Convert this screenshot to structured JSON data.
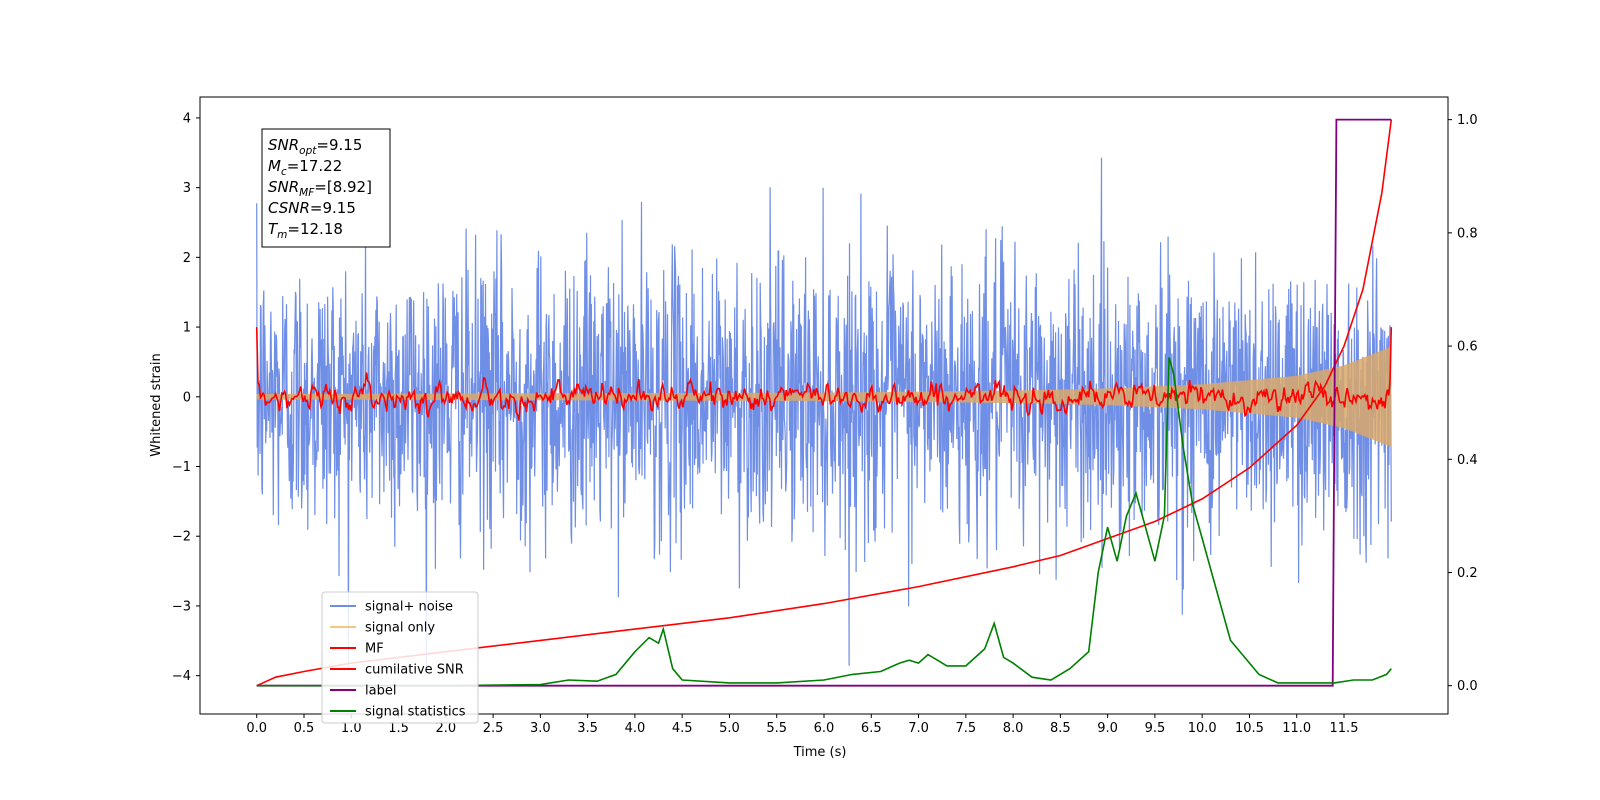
{
  "chart_data": {
    "type": "line",
    "xlabel": "Time (s)",
    "ylabel": "Whitened strain",
    "xlim": [
      -0.6,
      12.6
    ],
    "ylim": [
      -4.55,
      4.3
    ],
    "y2lim": [
      -0.05,
      1.04
    ],
    "xticks": [
      "0.0",
      "0.5",
      "1.0",
      "1.5",
      "2.0",
      "2.5",
      "3.0",
      "3.5",
      "4.0",
      "4.5",
      "5.0",
      "5.5",
      "6.0",
      "6.5",
      "7.0",
      "7.5",
      "8.0",
      "8.5",
      "9.0",
      "9.5",
      "10.0",
      "10.5",
      "11.0",
      "11.5"
    ],
    "yticks": [
      "4",
      "3",
      "2",
      "1",
      "0",
      "−1",
      "−2",
      "−3",
      "−4"
    ],
    "y2ticks": [
      "1.0",
      "0.8",
      "0.6",
      "0.4",
      "0.2",
      "0.0"
    ],
    "grid": false,
    "legend_position": "lower-left",
    "series": [
      {
        "name": "signal+ noise",
        "color": "#6f8ee6",
        "axis": "left",
        "description_values": {
          "t_start": 0.0,
          "t_end": 12.0,
          "sigma": 1.0
        }
      },
      {
        "name": "signal only",
        "color": "#f5c77e",
        "axis": "left",
        "envelope": {
          "t": [
            0,
            6,
            8,
            9,
            10,
            11,
            11.5,
            12
          ],
          "amp": [
            0.04,
            0.06,
            0.09,
            0.12,
            0.18,
            0.3,
            0.45,
            0.72
          ]
        }
      },
      {
        "name": "MF",
        "color": "#ff0000",
        "axis": "left",
        "values_summary": {
          "start": 1.0,
          "baseline": 0.0,
          "end": 1.0
        }
      },
      {
        "name": "cumilative SNR",
        "color": "#ff0000",
        "axis": "right",
        "x": [
          0.0,
          0.2,
          0.5,
          1.0,
          2.0,
          3.0,
          4.0,
          5.0,
          6.0,
          7.0,
          8.0,
          8.5,
          9.0,
          9.5,
          10.0,
          10.5,
          11.0,
          11.3,
          11.5,
          11.7,
          11.9,
          12.0
        ],
        "y": [
          0.0,
          0.015,
          0.025,
          0.04,
          0.06,
          0.08,
          0.1,
          0.12,
          0.145,
          0.175,
          0.21,
          0.23,
          0.26,
          0.29,
          0.33,
          0.385,
          0.46,
          0.53,
          0.6,
          0.7,
          0.87,
          1.0
        ]
      },
      {
        "name": "label",
        "color": "#800080",
        "axis": "right",
        "x": [
          0.0,
          11.38,
          11.4,
          11.42,
          12.0
        ],
        "y": [
          0.0,
          0.0,
          0.5,
          1.0,
          1.0
        ]
      },
      {
        "name": "signal statistics",
        "color": "#008000",
        "axis": "right",
        "x": [
          0.0,
          1.0,
          2.0,
          3.0,
          3.3,
          3.6,
          3.8,
          4.0,
          4.15,
          4.25,
          4.3,
          4.4,
          4.5,
          5.0,
          5.5,
          6.0,
          6.3,
          6.6,
          6.8,
          6.9,
          7.0,
          7.1,
          7.2,
          7.3,
          7.5,
          7.7,
          7.8,
          7.9,
          8.0,
          8.2,
          8.4,
          8.6,
          8.8,
          8.9,
          9.0,
          9.1,
          9.2,
          9.3,
          9.4,
          9.5,
          9.6,
          9.65,
          9.7,
          9.8,
          9.9,
          10.0,
          10.1,
          10.3,
          10.6,
          10.8,
          11.0,
          11.4,
          11.6,
          11.8,
          11.95,
          12.0
        ],
        "y": [
          0.0,
          0.0,
          0.0,
          0.002,
          0.01,
          0.008,
          0.02,
          0.06,
          0.085,
          0.075,
          0.1,
          0.03,
          0.01,
          0.005,
          0.005,
          0.01,
          0.02,
          0.025,
          0.04,
          0.045,
          0.04,
          0.055,
          0.045,
          0.035,
          0.035,
          0.065,
          0.11,
          0.05,
          0.04,
          0.015,
          0.01,
          0.03,
          0.06,
          0.2,
          0.28,
          0.22,
          0.3,
          0.34,
          0.28,
          0.22,
          0.3,
          0.58,
          0.55,
          0.42,
          0.32,
          0.26,
          0.2,
          0.08,
          0.02,
          0.005,
          0.005,
          0.005,
          0.01,
          0.01,
          0.02,
          0.03
        ]
      }
    ],
    "annotation": {
      "lines": [
        {
          "var": "SNR",
          "sub": "opt",
          "value": "=9.15"
        },
        {
          "var": "M",
          "sub": "c",
          "value": "=17.22"
        },
        {
          "var": "SNR",
          "sub": "MF",
          "value": "=[8.92]"
        },
        {
          "var": "CSNR",
          "sub": "",
          "value": "=9.15"
        },
        {
          "var": "T",
          "sub": "m",
          "value": "=12.18"
        }
      ]
    }
  }
}
